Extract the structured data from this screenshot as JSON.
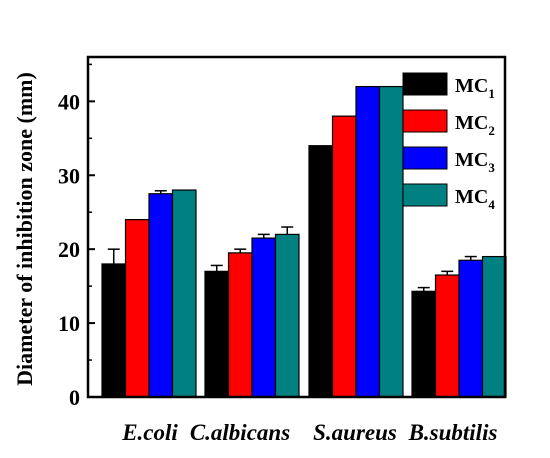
{
  "chart_data": {
    "type": "bar",
    "ylabel": "Diameter of inhibition zone (mm)",
    "xlabel": "",
    "ylim": [
      0,
      46
    ],
    "yticks": [
      0,
      10,
      20,
      30,
      40
    ],
    "categories": [
      "E.coli",
      "C.albicans",
      "S.aureus",
      "B.subtilis"
    ],
    "series": [
      {
        "name": "MC",
        "sub": "1",
        "color": "#000000",
        "values": [
          18,
          17,
          34,
          14.3
        ],
        "errors": [
          2.0,
          0.8,
          0,
          0.5
        ]
      },
      {
        "name": "MC",
        "sub": "2",
        "color": "#ff0000",
        "values": [
          24,
          19.5,
          38,
          16.5
        ],
        "errors": [
          0,
          0.5,
          0,
          0.5
        ]
      },
      {
        "name": "MC",
        "sub": "3",
        "color": "#0000ff",
        "values": [
          27.5,
          21.5,
          42,
          18.5
        ],
        "errors": [
          0.4,
          0.5,
          0,
          0.5
        ]
      },
      {
        "name": "MC",
        "sub": "4",
        "color": "#008080",
        "values": [
          28,
          22,
          42,
          19
        ],
        "errors": [
          0,
          1.0,
          0,
          0
        ]
      }
    ],
    "legend_position": "top-right",
    "grid": false
  }
}
